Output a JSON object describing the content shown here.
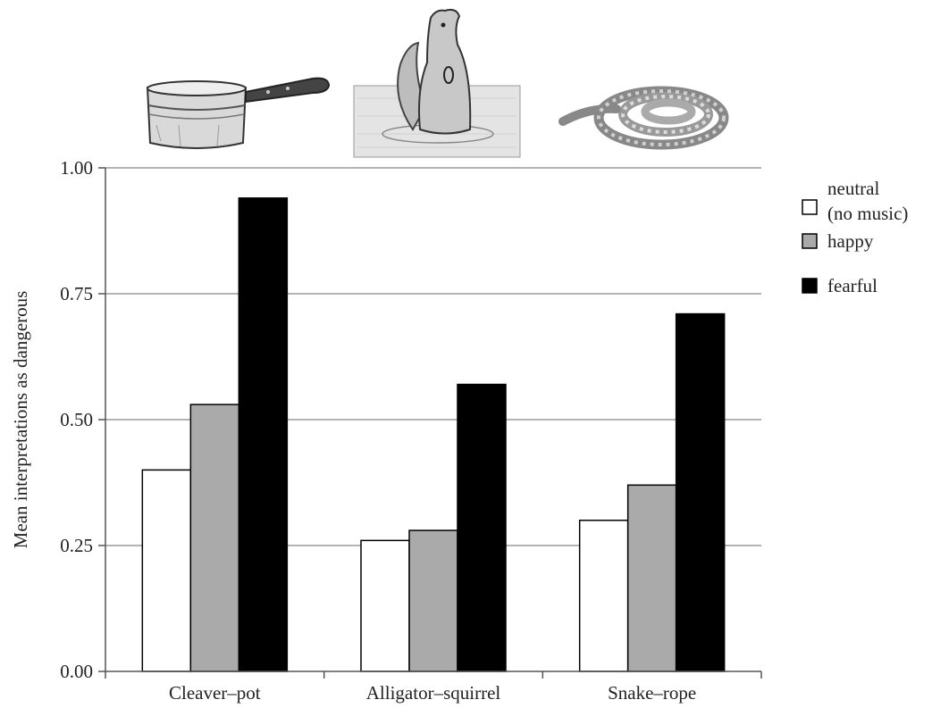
{
  "chart_data": {
    "type": "bar",
    "title": "",
    "xlabel": "",
    "ylabel": "Mean interpretations as dangerous",
    "ylim": [
      0,
      1
    ],
    "yticks": [
      "0.00",
      "0.25",
      "0.50",
      "0.75",
      "1.00"
    ],
    "ytick_values": [
      0,
      0.25,
      0.5,
      0.75,
      1.0
    ],
    "grid": true,
    "legend_position": "right",
    "categories": [
      "Cleaver–pot",
      "Alligator–squirrel",
      "Snake–rope"
    ],
    "series": [
      {
        "name": "neutral",
        "name_line2": "(no music)",
        "color": "#ffffff",
        "values": [
          0.4,
          0.26,
          0.3
        ]
      },
      {
        "name": "happy",
        "name_line2": "",
        "color": "#aaaaaa",
        "values": [
          0.53,
          0.28,
          0.37
        ]
      },
      {
        "name": "fearful",
        "name_line2": "",
        "color": "#000000",
        "values": [
          0.94,
          0.57,
          0.71
        ]
      }
    ],
    "illustrations": [
      "cleaver-pot-illustration",
      "alligator-squirrel-illustration",
      "snake-rope-illustration"
    ]
  }
}
